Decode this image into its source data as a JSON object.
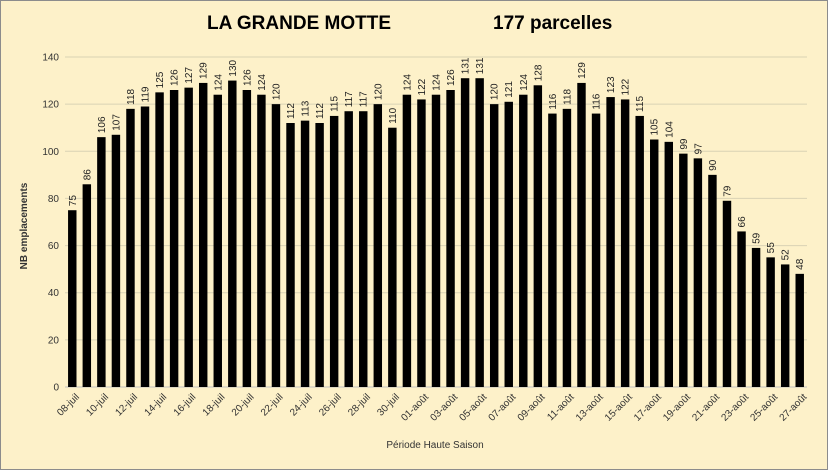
{
  "header": {
    "title_left": "LA GRANDE MOTTE",
    "title_right": "177 parcelles"
  },
  "colors": {
    "background": "#fdf1c9",
    "bar": "#000000",
    "grid": "#d9d2b4"
  },
  "chart_data": {
    "type": "bar",
    "title": "LA GRANDE MOTTE",
    "subtitle": "177 parcelles",
    "xlabel": "Période Haute Saison",
    "ylabel": "NB emplacements",
    "ylim": [
      0,
      140
    ],
    "yticks": [
      0,
      20,
      40,
      60,
      80,
      100,
      120,
      140
    ],
    "grid": true,
    "legend": "none",
    "x_tick_labels": [
      "08-juil",
      "10-juil",
      "12-juil",
      "14-juil",
      "16-juil",
      "18-juil",
      "20-juil",
      "22-juil",
      "24-juil",
      "26-juil",
      "28-juil",
      "30-juil",
      "01-août",
      "03-août",
      "05-août",
      "07-août",
      "09-août",
      "11-août",
      "13-août",
      "15-août",
      "17-août",
      "19-août",
      "21-août",
      "23-août",
      "25-août",
      "27-août"
    ],
    "values": [
      75,
      86,
      106,
      107,
      118,
      119,
      125,
      126,
      127,
      129,
      124,
      130,
      126,
      124,
      120,
      112,
      113,
      112,
      115,
      117,
      117,
      120,
      110,
      124,
      122,
      124,
      126,
      131,
      131,
      120,
      121,
      124,
      128,
      116,
      118,
      129,
      116,
      123,
      122,
      115,
      105,
      104,
      99,
      97,
      90,
      79,
      66,
      59,
      55,
      52,
      48
    ]
  }
}
